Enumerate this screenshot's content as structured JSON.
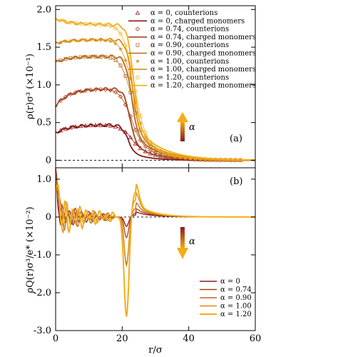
{
  "colors": {
    "a0": "#8b1a1a",
    "a074": "#a8431f",
    "a090": "#b86a1c",
    "a100": "#d88f12",
    "a120": "#f4ad18"
  },
  "chart_data": [
    {
      "type": "line",
      "panel_tag": "(a)",
      "ylabel": "ρ(r)σ³ (×10⁻¹)",
      "xlim": [
        0,
        60
      ],
      "ylim": [
        -0.1,
        2.05
      ],
      "xticks": [
        0,
        20,
        40,
        60
      ],
      "yticks": [
        0,
        0.5,
        1.0,
        1.5,
        2.0
      ],
      "ytick_labels": [
        "0",
        "0.5",
        "1.0",
        "1.5",
        "2.0"
      ],
      "zero_line": true,
      "arrow_label": "α",
      "arrow_direction": "up",
      "legend_position": "top-right",
      "legend": [
        "α = 0, counterions",
        "α = 0, charged monomers",
        "α = 0.74, counterions",
        "α = 0.74, charged monomers",
        "α = 0.90, counterions",
        "α = 0.90, charged monomers",
        "α = 1.00, counterions",
        "α = 1.00, charged monomers",
        "α = 1.20, counterions",
        "α = 1.20, charged monomers"
      ],
      "series": [
        {
          "alpha": "0",
          "color_key": "a0",
          "plateau": 0.47,
          "start": 0.36,
          "marker": "triangle"
        },
        {
          "alpha": "0.74",
          "color_key": "a074",
          "plateau": 0.95,
          "start": 0.72,
          "marker": "diamond"
        },
        {
          "alpha": "0.90",
          "color_key": "a090",
          "plateau": 1.38,
          "start": 1.3,
          "marker": "square"
        },
        {
          "alpha": "1.00",
          "color_key": "a100",
          "plateau": 1.6,
          "start": 1.55,
          "marker": "star"
        },
        {
          "alpha": "1.20",
          "color_key": "a120",
          "plateau": 1.8,
          "start": 1.88,
          "marker": "circle"
        }
      ]
    },
    {
      "type": "line",
      "panel_tag": "(b)",
      "xlabel": "r/σ",
      "ylabel": "ρQ(r)σ³/e* (×10⁻²)",
      "xlim": [
        0,
        60
      ],
      "ylim": [
        -3.0,
        1.3
      ],
      "xticks": [
        0,
        20,
        40,
        60
      ],
      "xtick_labels": [
        "0",
        "20",
        "40",
        "60"
      ],
      "yticks": [
        1.0,
        0,
        -1.0,
        -2.0,
        -3.0
      ],
      "ytick_labels": [
        "1.0",
        "0",
        "-1.0",
        "-2.0",
        "-3.0"
      ],
      "zero_line": true,
      "arrow_label": "α",
      "arrow_direction": "down",
      "legend_position": "bottom-right",
      "legend": [
        "α = 0",
        "α = 0.74",
        "α = 0.90",
        "α = 1.00",
        "α = 1.20"
      ],
      "series": [
        {
          "alpha": "0",
          "color_key": "a0",
          "min": -0.25,
          "peak": 0.05
        },
        {
          "alpha": "0.74",
          "color_key": "a074",
          "min": -0.55,
          "peak": 0.1
        },
        {
          "alpha": "0.90",
          "color_key": "a090",
          "min": -1.25,
          "peak": 0.22
        },
        {
          "alpha": "1.00",
          "color_key": "a100",
          "min": -1.3,
          "peak": 0.45
        },
        {
          "alpha": "1.20",
          "color_key": "a120",
          "min": -2.65,
          "peak": 0.65
        }
      ]
    }
  ]
}
